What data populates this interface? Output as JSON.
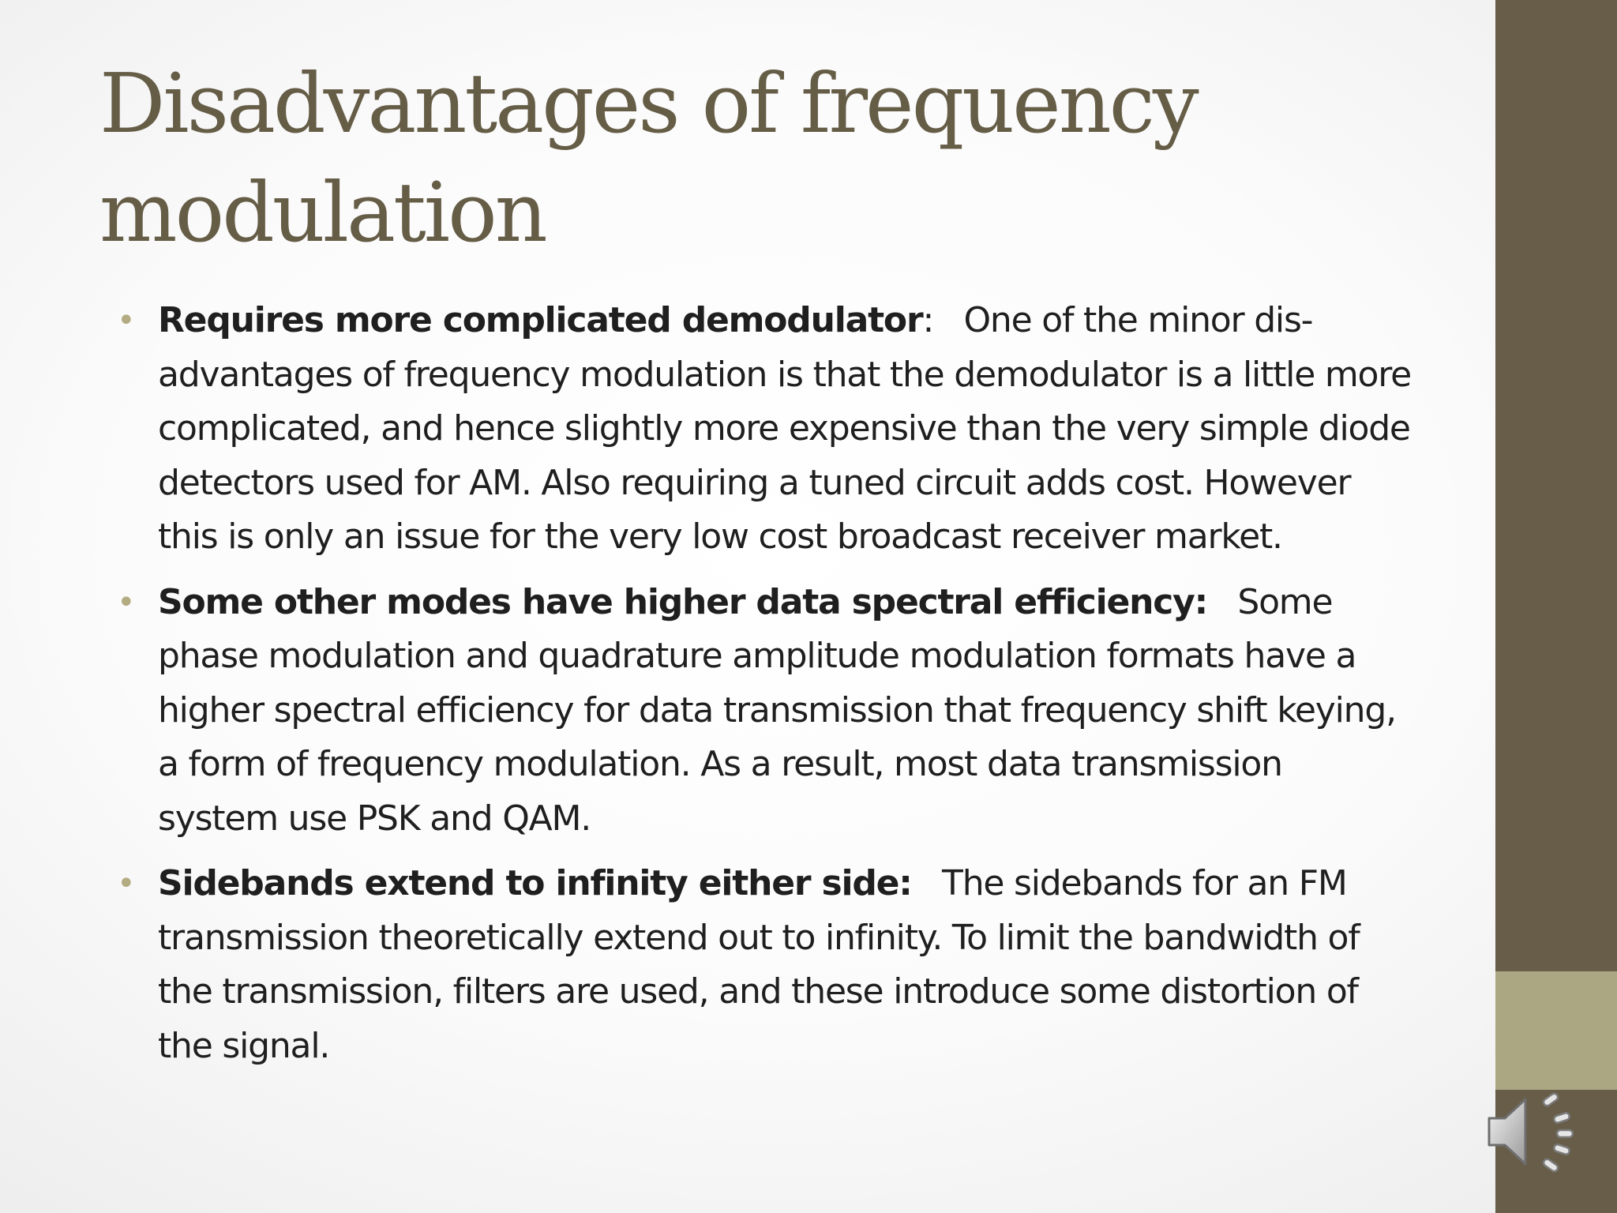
{
  "slide": {
    "title": "Disadvantages of frequency modulation",
    "bullet_symbol": "•",
    "bullets": [
      {
        "heading": "Requires more complicated demodulator",
        "separator": ":",
        "body": "One of the minor dis-advantages of frequency modulation is that the demodulator is a little more complicated, and hence slightly more expensive than the very simple diode detectors used for AM. Also requiring a tuned circuit adds cost. However this is only an issue for the very low cost broadcast receiver market."
      },
      {
        "heading": "Some other modes have higher data spectral efficiency:",
        "separator": "",
        "body": "Some phase modulation and quadrature amplitude modulation formats have a higher spectral efficiency for data transmission that frequency shift keying, a form of frequency modulation. As a result, most data transmission system use PSK and QAM."
      },
      {
        "heading": "Sidebands extend to infinity either side:",
        "separator": "",
        "body": "The sidebands for an FM transmission theoretically extend out to infinity. To limit the bandwidth of the transmission, filters are used, and these introduce some distortion of the signal."
      }
    ]
  },
  "audio": {
    "icon": "speaker-icon"
  },
  "colors": {
    "title": "#665d47",
    "text": "#1f1f1f",
    "bullet": "#b3ac82",
    "sidebar_dark": "#675d48",
    "sidebar_light": "#aca783"
  }
}
